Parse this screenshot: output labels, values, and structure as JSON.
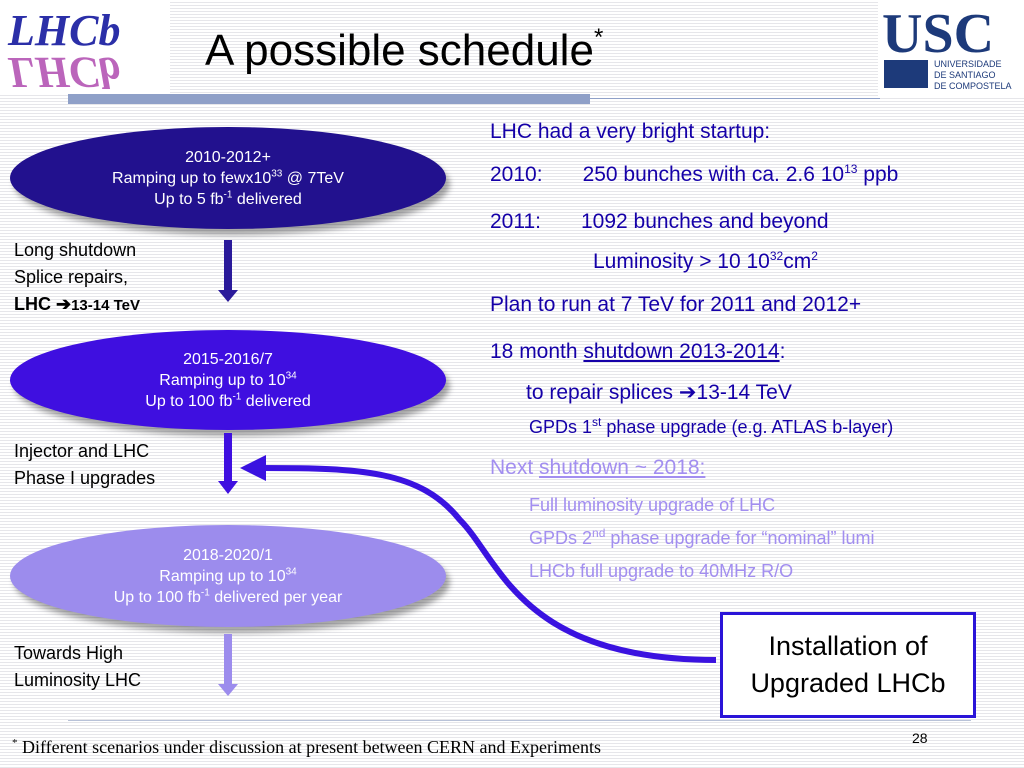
{
  "logos": {
    "lhcb": "LHCb",
    "usc_big": "USC",
    "usc_line1": "UNIVERSIDADE",
    "usc_line2": "DE SANTIAGO",
    "usc_line3": "DE COMPOSTELA"
  },
  "title": {
    "text": "A possible schedule",
    "mark": "*"
  },
  "ellipses": [
    {
      "l1": "2010-2012+",
      "l2_a": "Ramping up to fewx10",
      "l2_sup": "33",
      "l2_b": " @ 7TeV",
      "l3_a": "Up to 5 fb",
      "l3_sup": "-1",
      "l3_b": " delivered"
    },
    {
      "l1": "2015-2016/7",
      "l2_a": "Ramping up to 10",
      "l2_sup": "34",
      "l2_b": "",
      "l3_a": "Up to 100 fb",
      "l3_sup": "-1",
      "l3_b": " delivered"
    },
    {
      "l1": "2018-2020/1",
      "l2_a": "Ramping up to 10",
      "l2_sup": "34",
      "l2_b": "",
      "l3_a": "Up to 100 fb",
      "l3_sup": "-1",
      "l3_b": " delivered per year"
    }
  ],
  "left_notes": {
    "n1_l1": "Long shutdown",
    "n1_l2": "Splice repairs,",
    "n1_l3a": "LHC ",
    "n1_l3b": "13-14 TeV",
    "n2_l1": "Injector and LHC",
    "n2_l2": "Phase I upgrades",
    "n3_l1": "Towards High",
    "n3_l2": "Luminosity LHC"
  },
  "right": {
    "a": "LHC had a very bright startup:",
    "b_year": "2010:",
    "b_a": "250 bunches with ca. 2.6 10",
    "b_sup": "13",
    "b_b": " ppb",
    "c_year": "2011:",
    "c_a": "1092 bunches and beyond",
    "d_a": "Luminosity > 10 10",
    "d_sup": "32",
    "d_b": "cm",
    "d_sup2": "2",
    "e": "Plan to run at 7 TeV for 2011 and 2012+",
    "f_a": "18 month ",
    "f_u": "shutdown 2013-2014",
    "f_b": ":",
    "g_a": "to repair splices ",
    "g_b": "13-14 TeV",
    "h_a": "GPDs 1",
    "h_sup": "st",
    "h_b": " phase upgrade (e.g. ATLAS b-layer)",
    "i_a": "Next ",
    "i_u": "shutdown ~ 2018:",
    "j": "Full luminosity upgrade of LHC",
    "k_a": "GPDs 2",
    "k_sup": "nd",
    "k_b": " phase upgrade for “nominal” lumi",
    "l": "LHCb full upgrade to 40MHz R/O"
  },
  "install_box": {
    "l1": "Installation of",
    "l2": "Upgraded LHCb"
  },
  "footnote": {
    "mark": "*",
    "text": " Different scenarios under discussion at present between CERN and Experiments"
  },
  "page_number": "28",
  "colors": {
    "dark_blue": "#22118e",
    "mid_blue": "#3f0fe0",
    "light_purple": "#9c8ced",
    "text_blue": "#1500a8",
    "faded_text": "#a28ef0"
  }
}
